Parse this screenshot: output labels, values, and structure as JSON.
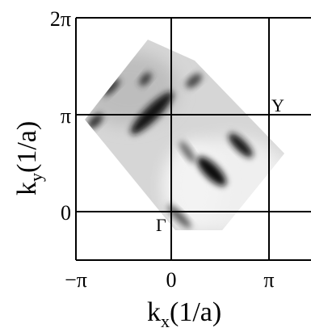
{
  "figure": {
    "x_ticks": [
      "−π",
      "0",
      "π"
    ],
    "y_ticks": [
      "2π",
      "π",
      "0"
    ],
    "x_label": {
      "main": "k",
      "sub": "x",
      "unit": "(1/a)"
    },
    "y_label": {
      "main": "k",
      "sub": "y",
      "unit": "(1/a)"
    },
    "points": {
      "gamma": "Γ",
      "y": "Y"
    },
    "colors": {
      "frame": "#000000",
      "map_bg": "#d8d8d8",
      "feature": "#1a1a1a"
    }
  }
}
